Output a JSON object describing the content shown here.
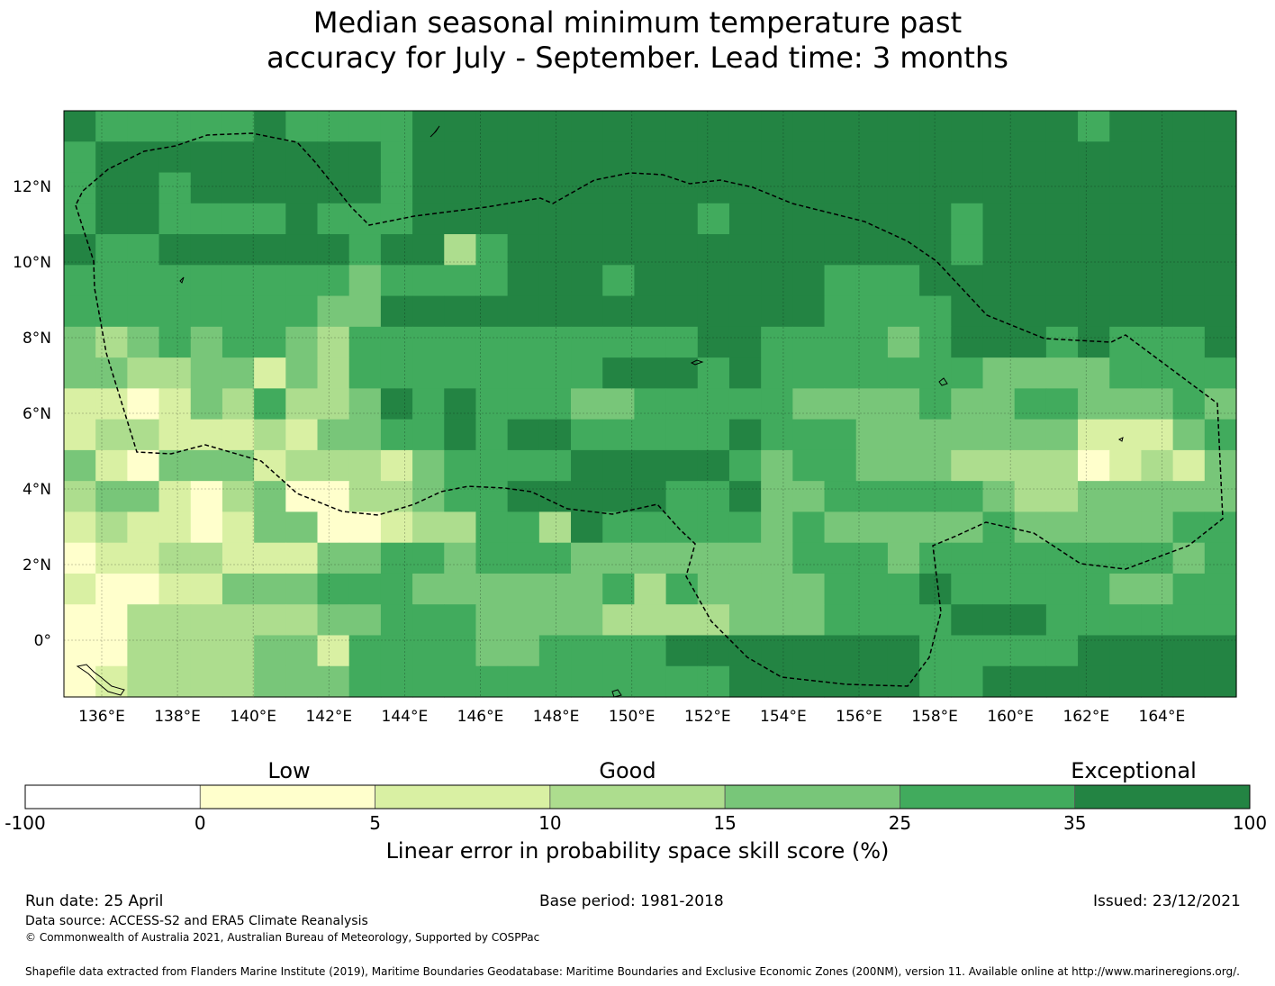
{
  "title": {
    "line1": "Median seasonal minimum temperature past",
    "line2": "accuracy for July - September. Lead time: 3 months"
  },
  "map": {
    "lon_ticks": [
      "136°E",
      "138°E",
      "140°E",
      "142°E",
      "144°E",
      "146°E",
      "148°E",
      "150°E",
      "152°E",
      "154°E",
      "156°E",
      "158°E",
      "160°E",
      "162°E",
      "164°E"
    ],
    "lat_ticks": [
      "12°N",
      "10°N",
      "8°N",
      "6°N",
      "4°N",
      "2°N",
      "0°"
    ],
    "palette": [
      "#ffffff",
      "#ffffcc",
      "#d9f0a3",
      "#addd8e",
      "#78c679",
      "#41ab5d",
      "#238443"
    ]
  },
  "colorbar": {
    "categories": [
      "Low",
      "Good",
      "Exceptional"
    ],
    "ticks": [
      "-100",
      "0",
      "5",
      "10",
      "15",
      "25",
      "35",
      "100"
    ],
    "colors": [
      "#ffffff",
      "#ffffcc",
      "#d9f0a3",
      "#addd8e",
      "#78c679",
      "#41ab5d",
      "#238443"
    ],
    "label": "Linear error in probability space skill score (%)"
  },
  "footer": {
    "run_date": "Run date: 25 April",
    "base_period": "Base period: 1981-2018",
    "issued": "Issued: 23/12/2021",
    "data_source": "Data source: ACCESS-S2 and ERA5 Climate Reanalysis",
    "copyright": "© Commonwealth of Australia 2021, Australian Bureau of Meteorology, Supported by COSPPac",
    "shapefile": "Shapefile data extracted from Flanders Marine Institute (2019), Maritime Boundaries Geodatabase: Maritime Boundaries and Exclusive Economic Zones (200NM), version 11. Available online at http://www.marineregions.org/."
  }
}
